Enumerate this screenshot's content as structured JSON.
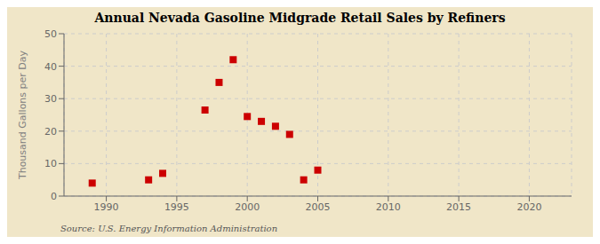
{
  "chart_data": {
    "type": "scatter",
    "title": "Annual Nevada Gasoline Midgrade Retail Sales by Refiners",
    "ylabel": "Thousand Gallons per Day",
    "annotation": "Source: U.S. Energy Information Administration",
    "x": [
      1989,
      1993,
      1994,
      1997,
      1998,
      1999,
      2000,
      2001,
      2002,
      2003,
      2004,
      2005
    ],
    "values": [
      4.0,
      5.0,
      7.0,
      26.5,
      35.0,
      42.0,
      24.5,
      23.0,
      21.5,
      19.0,
      5.0,
      8.0
    ],
    "color": "#cc0000",
    "marker": "square",
    "xlim": [
      1987,
      2023
    ],
    "xticks": [
      1990,
      1995,
      2000,
      2005,
      2010,
      2015,
      2020
    ],
    "ylim": [
      0,
      50
    ],
    "yticks": [
      0,
      10,
      20,
      30,
      40,
      50
    ],
    "grid": true
  }
}
